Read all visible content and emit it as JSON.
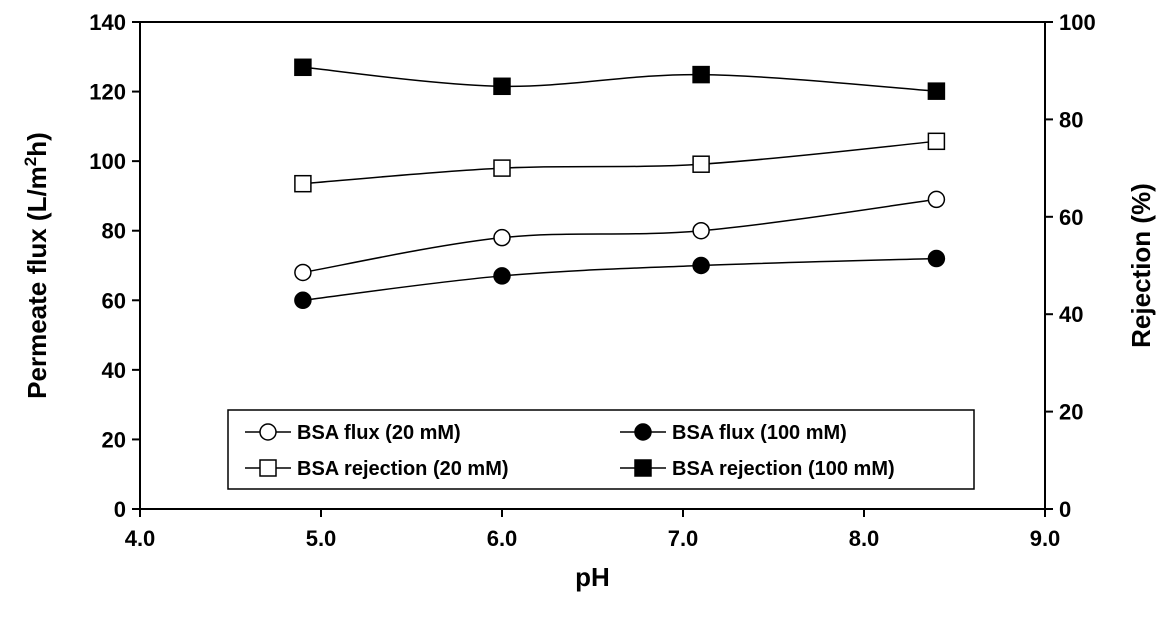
{
  "chart_data": {
    "type": "line",
    "xlabel": "pH",
    "ylabel_left": "Permeate flux (L/m2h)",
    "ylabel_left_parts": {
      "pre": "Permeate flux (L/m",
      "sup": "2",
      "post": "h)"
    },
    "ylabel_right": "Rejection (%)",
    "xlim": [
      4.0,
      9.0
    ],
    "ylim_left": [
      0,
      140
    ],
    "ylim_right": [
      0,
      100
    ],
    "x_ticks": [
      "4.0",
      "5.0",
      "6.0",
      "7.0",
      "8.0",
      "9.0"
    ],
    "x_tick_values": [
      4,
      5,
      6,
      7,
      8,
      9
    ],
    "y_left_ticks": [
      "0",
      "20",
      "40",
      "60",
      "80",
      "100",
      "120",
      "140"
    ],
    "y_left_tick_values": [
      0,
      20,
      40,
      60,
      80,
      100,
      120,
      140
    ],
    "y_right_ticks": [
      "0",
      "20",
      "40",
      "60",
      "80",
      "100"
    ],
    "y_right_tick_values": [
      0,
      20,
      40,
      60,
      80,
      100
    ],
    "grid": false,
    "legend_position": "bottom-center",
    "series": [
      {
        "name": "BSA flux (20 mM)",
        "axis": "left",
        "marker": "circle-open",
        "x": [
          4.9,
          6.0,
          7.1,
          8.4
        ],
        "y": [
          68,
          78,
          80,
          89
        ]
      },
      {
        "name": "BSA flux (100 mM)",
        "axis": "left",
        "marker": "circle-filled",
        "x": [
          4.9,
          6.0,
          7.1,
          8.4
        ],
        "y": [
          60,
          67,
          70,
          72
        ]
      },
      {
        "name": "BSA rejection (20 mM)",
        "axis": "right",
        "marker": "square-open",
        "x": [
          4.9,
          6.0,
          7.1,
          8.4
        ],
        "y": [
          66.8,
          70.0,
          70.8,
          75.5
        ]
      },
      {
        "name": "BSA rejection (100 mM)",
        "axis": "right",
        "marker": "square-filled",
        "x": [
          4.9,
          6.0,
          7.1,
          8.4
        ],
        "y": [
          90.7,
          86.8,
          89.2,
          85.8
        ]
      }
    ]
  }
}
